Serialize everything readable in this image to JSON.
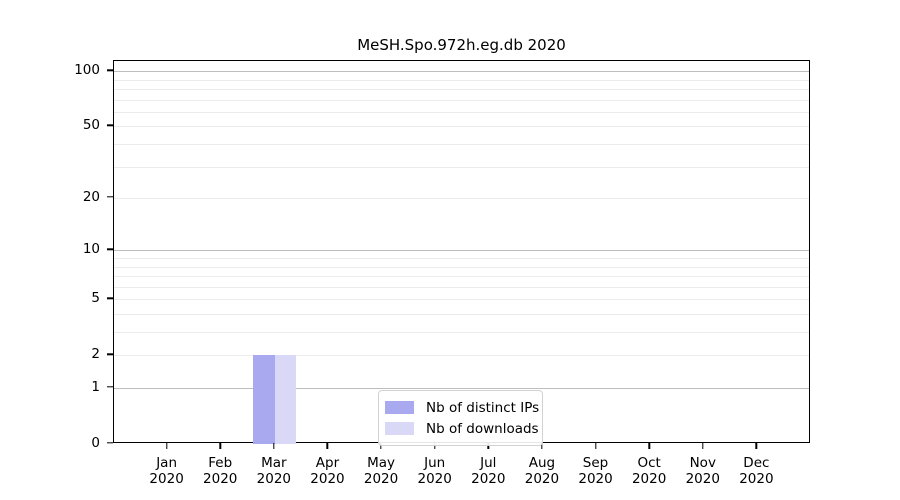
{
  "title": "MeSH.Spo.972h.eg.db 2020",
  "colors": {
    "distinct_ips": "#a9a9ef",
    "downloads": "#d9d9f7",
    "grid_major": "#bdbdbd",
    "grid_minor": "#ececec",
    "axis": "#000000",
    "background": "#ffffff"
  },
  "chart_data": {
    "type": "bar",
    "title": "MeSH.Spo.972h.eg.db 2020",
    "categories": [
      "Jan 2020",
      "Feb 2020",
      "Mar 2020",
      "Apr 2020",
      "May 2020",
      "Jun 2020",
      "Jul 2020",
      "Aug 2020",
      "Sep 2020",
      "Oct 2020",
      "Nov 2020",
      "Dec 2020"
    ],
    "series": [
      {
        "name": "Nb of distinct IPs",
        "color": "#a9a9ef",
        "values": [
          0,
          0,
          2,
          0,
          0,
          0,
          0,
          0,
          0,
          0,
          0,
          0
        ]
      },
      {
        "name": "Nb of downloads",
        "color": "#d9d9f7",
        "values": [
          0,
          0,
          2,
          0,
          0,
          0,
          0,
          0,
          0,
          0,
          0,
          0
        ]
      }
    ],
    "xlabel": "",
    "ylabel": "",
    "yscale": "log1p",
    "ylim": [
      0,
      115
    ],
    "yticks": [
      0,
      1,
      2,
      5,
      10,
      20,
      50,
      100
    ],
    "major_gridlines": [
      1,
      10,
      100
    ],
    "minor_gridlines": [
      2,
      3,
      4,
      5,
      6,
      7,
      8,
      9,
      20,
      30,
      40,
      50,
      60,
      70,
      80,
      90
    ],
    "grid": true,
    "legend_position": "bottom-center"
  },
  "x_axis": {
    "months": [
      {
        "label": "Jan",
        "year": "2020"
      },
      {
        "label": "Feb",
        "year": "2020"
      },
      {
        "label": "Mar",
        "year": "2020"
      },
      {
        "label": "Apr",
        "year": "2020"
      },
      {
        "label": "May",
        "year": "2020"
      },
      {
        "label": "Jun",
        "year": "2020"
      },
      {
        "label": "Jul",
        "year": "2020"
      },
      {
        "label": "Aug",
        "year": "2020"
      },
      {
        "label": "Sep",
        "year": "2020"
      },
      {
        "label": "Oct",
        "year": "2020"
      },
      {
        "label": "Nov",
        "year": "2020"
      },
      {
        "label": "Dec",
        "year": "2020"
      }
    ]
  },
  "legend": {
    "items": [
      {
        "label": "Nb of distinct IPs",
        "color": "#a9a9ef"
      },
      {
        "label": "Nb of downloads",
        "color": "#d9d9f7"
      }
    ]
  }
}
